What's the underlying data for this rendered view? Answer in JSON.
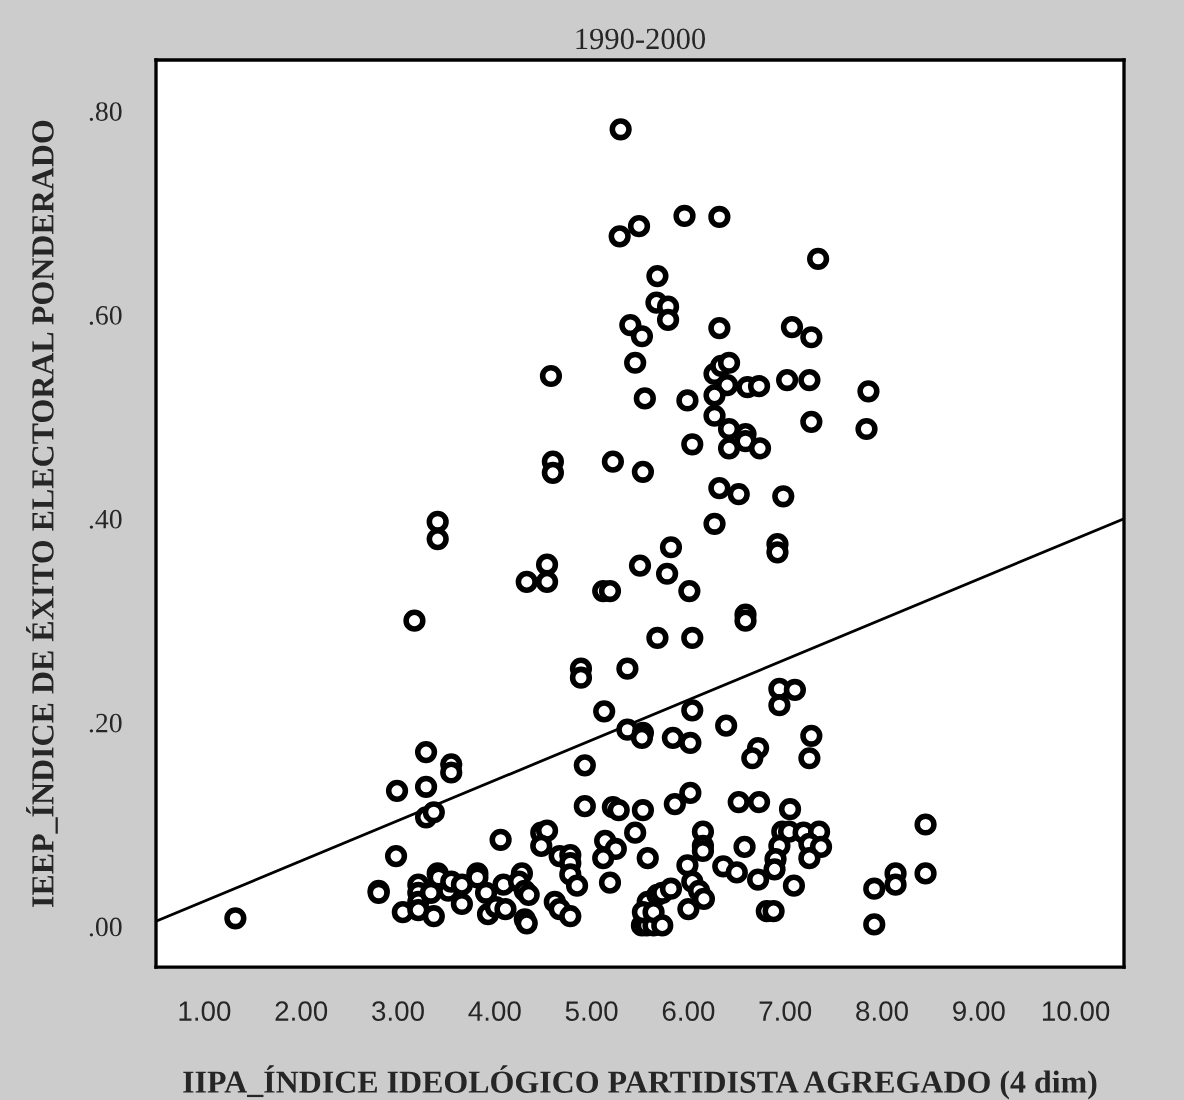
{
  "chart_data": {
    "type": "scatter",
    "title": "1990-2000",
    "xlabel": "IIPA_ÍNDICE IDEOLÓGICO PARTIDISTA AGREGADO (4 dim)",
    "ylabel": "IEEP_ÍNDICE DE ÉXITO ELECTORAL PONDERADO",
    "xlim": [
      0.5,
      10.5
    ],
    "ylim": [
      -0.04,
      0.85
    ],
    "xticks": [
      {
        "value": 1,
        "label": "1.00"
      },
      {
        "value": 2,
        "label": "2.00"
      },
      {
        "value": 3,
        "label": "3.00"
      },
      {
        "value": 4,
        "label": "4.00"
      },
      {
        "value": 5,
        "label": "5.00"
      },
      {
        "value": 6,
        "label": "6.00"
      },
      {
        "value": 7,
        "label": "7.00"
      },
      {
        "value": 8,
        "label": "8.00"
      },
      {
        "value": 9,
        "label": "9.00"
      },
      {
        "value": 10,
        "label": "10.00"
      }
    ],
    "yticks": [
      {
        "value": 0,
        "label": ".00"
      },
      {
        "value": 0.2,
        "label": ".20"
      },
      {
        "value": 0.4,
        "label": ".40"
      },
      {
        "value": 0.6,
        "label": ".60"
      },
      {
        "value": 0.8,
        "label": ".80"
      }
    ],
    "grid": false,
    "legend": false,
    "series": [
      {
        "color": "#000000",
        "marker": "circle",
        "x": [
          5.3,
          5.29,
          5.49,
          5.96,
          6.32,
          7.34,
          5.68,
          5.67,
          5.79,
          5.79,
          5.4,
          6.32,
          7.07,
          7.27,
          5.52,
          5.45,
          4.58,
          6.27,
          6.34,
          6.42,
          6.4,
          6.61,
          6.73,
          7.02,
          7.25,
          7.86,
          5.55,
          5.99,
          6.27,
          6.27,
          6.42,
          6.59,
          6.59,
          6.74,
          6.42,
          6.04,
          7.27,
          7.84,
          4.6,
          4.6,
          5.22,
          5.53,
          6.32,
          6.52,
          6.98,
          6.27,
          3.41,
          3.41,
          5.82,
          6.92,
          6.92,
          4.54,
          4.33,
          4.54,
          5.5,
          5.78,
          5.12,
          5.19,
          6.01,
          6.59,
          6.59,
          3.17,
          5.68,
          6.04,
          4.89,
          4.89,
          5.37,
          5.13,
          5.37,
          5.53,
          5.52,
          5.84,
          6.02,
          6.04,
          6.39,
          6.94,
          7.1,
          6.94,
          7.27,
          6.72,
          6.66,
          7.25,
          3.29,
          3.55,
          3.55,
          2.99,
          3.29,
          3.29,
          3.37,
          4.93,
          4.93,
          5.22,
          5.28,
          5.53,
          5.86,
          6.02,
          6.52,
          6.73,
          7.05,
          8.45,
          4.06,
          4.48,
          4.54,
          4.48,
          5.14,
          5.45,
          5.25,
          6.15,
          6.15,
          6.15,
          6.58,
          6.97,
          7.04,
          7.19,
          7.35,
          6.94,
          7.25,
          7.37,
          2.98,
          4.67,
          4.78,
          4.78,
          5.58,
          5.12,
          6.9,
          7.25,
          5.99,
          6.36,
          6.5,
          6.89,
          8.14,
          8.45,
          3.41,
          3.82,
          4.28,
          7.09,
          6.72,
          7.92,
          8.14,
          7.92,
          6.81,
          6.88,
          1.32,
          2.8,
          2.8,
          3.05,
          3.21,
          3.21,
          3.21,
          3.21,
          3.37,
          3.34,
          3.42,
          3.52,
          3.55,
          3.66,
          3.66,
          3.82,
          3.91,
          3.93,
          4.01,
          4.09,
          4.11,
          4.25,
          4.31,
          4.35,
          4.31,
          4.33,
          4.62,
          4.67,
          4.78,
          4.85,
          4.78,
          5.19,
          5.58,
          5.68,
          5.73,
          5.82,
          5.52,
          5.57,
          5.64,
          5.53,
          5.64,
          5.73,
          6.0,
          6.04,
          6.11,
          6.16
        ],
        "values": [
          0.782,
          0.677,
          0.687,
          0.697,
          0.696,
          0.655,
          0.638,
          0.612,
          0.608,
          0.595,
          0.59,
          0.587,
          0.588,
          0.578,
          0.579,
          0.553,
          0.54,
          0.542,
          0.55,
          0.553,
          0.531,
          0.529,
          0.53,
          0.536,
          0.536,
          0.525,
          0.518,
          0.516,
          0.521,
          0.501,
          0.488,
          0.483,
          0.476,
          0.469,
          0.469,
          0.473,
          0.495,
          0.488,
          0.456,
          0.445,
          0.456,
          0.446,
          0.43,
          0.424,
          0.422,
          0.395,
          0.397,
          0.38,
          0.372,
          0.375,
          0.367,
          0.355,
          0.338,
          0.338,
          0.354,
          0.346,
          0.329,
          0.329,
          0.329,
          0.306,
          0.3,
          0.3,
          0.283,
          0.283,
          0.253,
          0.244,
          0.253,
          0.211,
          0.193,
          0.19,
          0.185,
          0.185,
          0.18,
          0.212,
          0.197,
          0.233,
          0.232,
          0.217,
          0.187,
          0.175,
          0.165,
          0.165,
          0.171,
          0.159,
          0.151,
          0.133,
          0.137,
          0.107,
          0.112,
          0.158,
          0.118,
          0.117,
          0.114,
          0.114,
          0.12,
          0.131,
          0.122,
          0.122,
          0.115,
          0.1,
          0.085,
          0.092,
          0.094,
          0.079,
          0.084,
          0.092,
          0.076,
          0.093,
          0.079,
          0.074,
          0.078,
          0.093,
          0.093,
          0.092,
          0.093,
          0.079,
          0.081,
          0.078,
          0.069,
          0.069,
          0.07,
          0.062,
          0.067,
          0.067,
          0.066,
          0.067,
          0.06,
          0.059,
          0.053,
          0.056,
          0.052,
          0.052,
          0.052,
          0.052,
          0.052,
          0.04,
          0.046,
          0.037,
          0.041,
          0.002,
          0.015,
          0.015,
          0.008,
          0.035,
          0.033,
          0.014,
          0.041,
          0.033,
          0.024,
          0.016,
          0.01,
          0.033,
          0.048,
          0.035,
          0.044,
          0.041,
          0.022,
          0.048,
          0.033,
          0.012,
          0.019,
          0.041,
          0.017,
          0.044,
          0.035,
          0.031,
          0.007,
          0.003,
          0.024,
          0.017,
          0.051,
          0.04,
          0.01,
          0.043,
          0.024,
          0.031,
          0.033,
          0.037,
          0.001,
          0.001,
          0.001,
          0.014,
          0.014,
          0.001,
          0.017,
          0.044,
          0.035,
          0.027
        ]
      },
      {
        "type": "line",
        "color": "#000000",
        "marker": "none",
        "line_style": "solid",
        "x": [
          0.5,
          10.5
        ],
        "values": [
          0.005,
          0.4
        ]
      }
    ]
  }
}
